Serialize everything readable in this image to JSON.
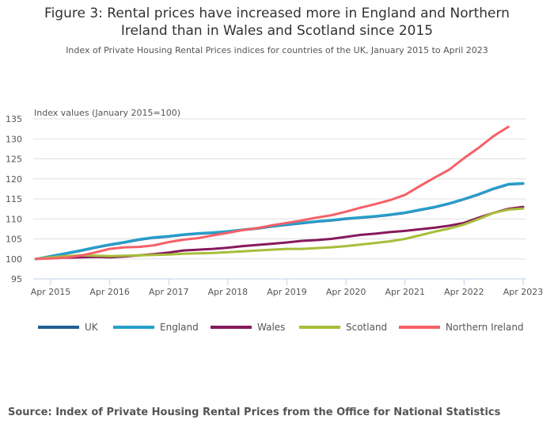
{
  "title": "Figure 3: Rental prices have increased more in England and Northern Ireland than in Wales and Scotland since 2015",
  "title_line1": "Figure 3: Rental prices have increased more in England and Northern",
  "title_line2": "Ireland than in Wales and Scotland since 2015",
  "subtitle": "Index of Private Housing Rental Prices indices for countries of the UK, January 2015 to April 2023",
  "source": "Source: Index of Private Housing Rental Prices from the Office for National Statistics",
  "chart_data": {
    "type": "line",
    "title": "Figure 3: Rental prices have increased more in England and Northern Ireland than in Wales and Scotland since 2015",
    "subtitle": "Index of Private Housing Rental Prices indices for countries of the UK, January 2015 to April 2023",
    "ylabel": "Index values (January 2015=100)",
    "xlabel": "",
    "ylim": [
      95,
      135
    ],
    "yticks": [
      95,
      100,
      105,
      110,
      115,
      120,
      125,
      130,
      135
    ],
    "xticks": [
      "Apr 2015",
      "Apr 2016",
      "Apr 2017",
      "Apr 2018",
      "Apr 2019",
      "Apr 2020",
      "Apr 2021",
      "Apr 2022",
      "Apr 2023"
    ],
    "x_start": "Jan 2015",
    "x_step": "quarterly (month offsets from Jan 2015)",
    "grid": true,
    "legend_position": "bottom",
    "x_months": [
      0,
      3,
      6,
      9,
      12,
      15,
      18,
      21,
      24,
      27,
      30,
      33,
      36,
      39,
      42,
      45,
      48,
      51,
      54,
      57,
      60,
      63,
      66,
      69,
      72,
      75,
      78,
      81,
      84,
      87,
      90,
      93,
      96,
      99
    ],
    "series": [
      {
        "name": "UK",
        "color": "#206095",
        "values": [
          100.0,
          100.6,
          101.3,
          102.0,
          102.8,
          103.5,
          104.1,
          104.8,
          105.3,
          105.6,
          106.0,
          106.3,
          106.5,
          106.8,
          107.2,
          107.6,
          108.1,
          108.5,
          108.9,
          109.3,
          109.6,
          110.0,
          110.3,
          110.6,
          111.0,
          111.5,
          112.2,
          112.9,
          113.8,
          114.9,
          116.1,
          117.5,
          118.6,
          118.8
        ]
      },
      {
        "name": "England",
        "color": "#27a0cc",
        "values": [
          100.0,
          100.7,
          101.4,
          102.1,
          102.9,
          103.6,
          104.2,
          104.9,
          105.4,
          105.7,
          106.1,
          106.4,
          106.6,
          106.9,
          107.3,
          107.7,
          108.2,
          108.6,
          109.0,
          109.4,
          109.7,
          110.1,
          110.4,
          110.7,
          111.1,
          111.6,
          112.3,
          113.0,
          113.9,
          115.0,
          116.2,
          117.6,
          118.7,
          118.9
        ]
      },
      {
        "name": "Wales",
        "color": "#871a5b",
        "values": [
          100.0,
          100.2,
          100.3,
          100.4,
          100.5,
          100.4,
          100.6,
          100.9,
          101.2,
          101.6,
          102.1,
          102.3,
          102.5,
          102.8,
          103.2,
          103.5,
          103.8,
          104.1,
          104.5,
          104.7,
          105.0,
          105.5,
          106.0,
          106.3,
          106.7,
          107.0,
          107.4,
          107.8,
          108.3,
          109.0,
          110.3,
          111.5,
          112.5,
          113.0
        ]
      },
      {
        "name": "Scotland",
        "color": "#a8bd3a",
        "values": [
          100.0,
          100.4,
          100.7,
          100.9,
          100.8,
          100.7,
          100.8,
          100.9,
          101.0,
          101.1,
          101.3,
          101.4,
          101.5,
          101.7,
          101.9,
          102.1,
          102.3,
          102.5,
          102.5,
          102.7,
          102.9,
          103.2,
          103.6,
          104.0,
          104.4,
          105.0,
          105.9,
          106.8,
          107.6,
          108.6,
          110.0,
          111.5,
          112.3,
          112.6
        ]
      },
      {
        "name": "Northern Ireland",
        "color": "#f66068",
        "values": [
          100.0,
          100.1,
          100.3,
          100.8,
          101.6,
          102.5,
          102.9,
          103.0,
          103.4,
          104.2,
          104.8,
          105.2,
          105.9,
          106.5,
          107.2,
          107.7,
          108.4,
          109.0,
          109.6,
          110.3,
          110.9,
          111.8,
          112.8,
          113.7,
          114.7,
          116.0,
          118.2,
          120.3,
          122.3,
          125.2,
          127.8,
          130.7,
          133.0,
          null
        ]
      }
    ]
  }
}
